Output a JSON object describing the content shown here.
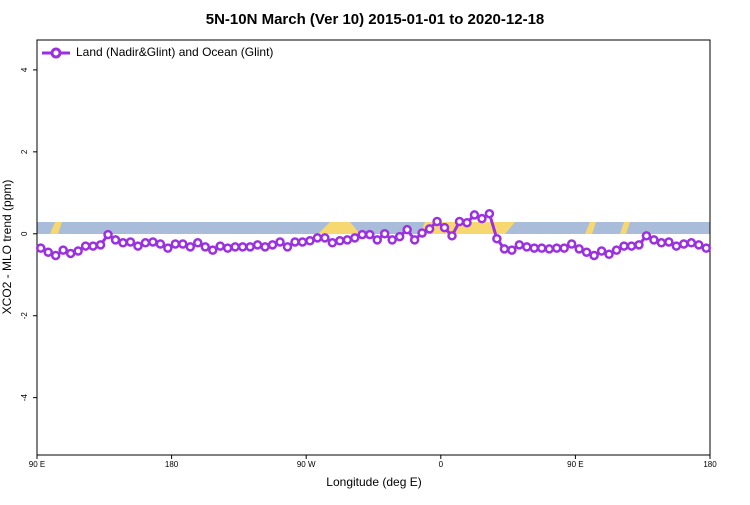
{
  "chart_data": {
    "type": "line",
    "title": "5N-10N March (Ver 10)   2015-01-01 to 2020-12-18",
    "x_label": "Longitude (deg E)",
    "y_label": "XCO2 - MLO trend (ppm)",
    "xlim": [
      90,
      540
    ],
    "ylim": [
      -5.4,
      4.73
    ],
    "xticks": [
      {
        "value": 90,
        "label": "90 E"
      },
      180,
      {
        "value": 270,
        "label": "90 W"
      },
      {
        "value": 360,
        "label": "0"
      },
      {
        "value": 450,
        "label": "90 E"
      },
      {
        "value": 540,
        "label": "180"
      }
    ],
    "yticks": [
      -4,
      -2,
      0,
      2,
      4
    ],
    "legend": "top-left",
    "x": [
      92.5,
      97.5,
      102.5,
      107.5,
      112.5,
      117.5,
      122.5,
      127.5,
      132.5,
      137.5,
      142.5,
      147.5,
      152.5,
      157.5,
      162.5,
      167.5,
      172.5,
      177.5,
      182.5,
      187.5,
      192.5,
      197.5,
      202.5,
      207.5,
      212.5,
      217.5,
      222.5,
      227.5,
      232.5,
      237.5,
      242.5,
      247.5,
      252.5,
      257.5,
      262.5,
      267.5,
      272.5,
      277.5,
      282.5,
      287.5,
      292.5,
      297.5,
      302.5,
      307.5,
      312.5,
      317.5,
      322.5,
      327.5,
      332.5,
      337.5,
      342.5,
      347.5,
      352.5,
      357.5,
      362.5,
      367.5,
      372.5,
      377.5,
      382.5,
      387.5,
      392.5,
      397.5,
      402.5,
      407.5,
      412.5,
      417.5,
      422.5,
      427.5,
      432.5,
      437.5,
      442.5,
      447.5,
      452.5,
      457.5,
      462.5,
      467.5,
      472.5,
      477.5,
      482.5,
      487.5,
      492.5,
      497.5,
      502.5,
      507.5,
      512.5,
      517.5,
      522.5,
      527.5,
      532.5,
      537.5
    ],
    "series": [
      {
        "name": "Land (Nadir&Glint) and Ocean (Glint)",
        "color": "#9b30e0",
        "values": [
          -0.35,
          -0.45,
          -0.53,
          -0.4,
          -0.48,
          -0.42,
          -0.3,
          -0.3,
          -0.27,
          -0.02,
          -0.15,
          -0.22,
          -0.2,
          -0.3,
          -0.22,
          -0.2,
          -0.25,
          -0.35,
          -0.25,
          -0.25,
          -0.32,
          -0.22,
          -0.32,
          -0.4,
          -0.3,
          -0.35,
          -0.32,
          -0.32,
          -0.32,
          -0.27,
          -0.32,
          -0.27,
          -0.2,
          -0.32,
          -0.2,
          -0.2,
          -0.17,
          -0.1,
          -0.1,
          -0.22,
          -0.17,
          -0.15,
          -0.1,
          -0.02,
          -0.02,
          -0.15,
          0,
          -0.15,
          -0.07,
          0.1,
          -0.15,
          0.02,
          0.12,
          0.3,
          0.15,
          -0.05,
          0.3,
          0.27,
          0.46,
          0.37,
          0.49,
          -0.12,
          -0.37,
          -0.4,
          -0.27,
          -0.32,
          -0.35,
          -0.35,
          -0.37,
          -0.35,
          -0.35,
          -0.25,
          -0.37,
          -0.45,
          -0.53,
          -0.42,
          -0.5,
          -0.4,
          -0.3,
          -0.3,
          -0.27,
          -0.05,
          -0.15,
          -0.22,
          -0.2,
          -0.3,
          -0.25,
          -0.22,
          -0.27,
          -0.35
        ]
      }
    ]
  }
}
